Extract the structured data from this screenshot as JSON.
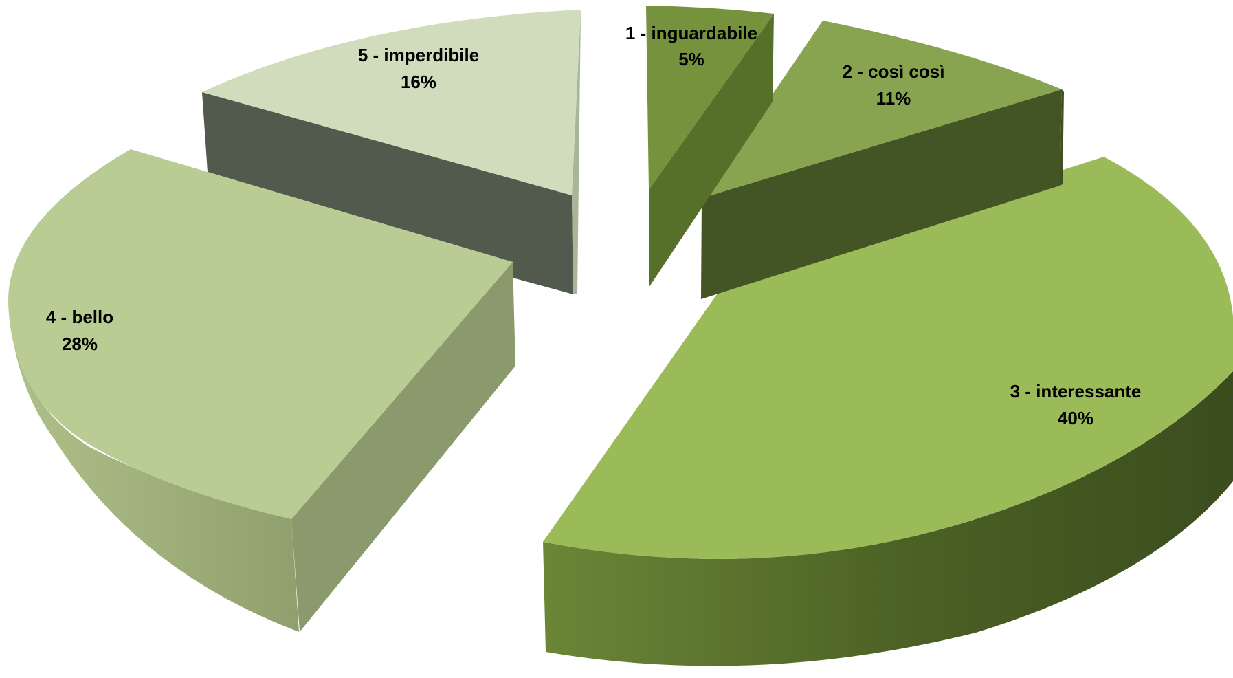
{
  "chart_data": {
    "type": "pie",
    "style": "3d-exploded",
    "slices": [
      {
        "label": "1 - inguardabile",
        "value": 5,
        "value_label": "5%",
        "color": "#77923C",
        "side": "#56702A"
      },
      {
        "label": "2 - così così",
        "value": 11,
        "value_label": "11%",
        "color": "#88A451",
        "side": "#435425"
      },
      {
        "label": "3 - interessante",
        "value": 40,
        "value_label": "40%",
        "color": "#9BBB59",
        "side": "#4F6628"
      },
      {
        "label": "4 - bello",
        "value": 28,
        "value_label": "28%",
        "color": "#B9CC94",
        "side": "#8A9A6D"
      },
      {
        "label": "5 - imperdibile",
        "value": 16,
        "value_label": "16%",
        "color": "#D0DCBB",
        "side": "#525A4D"
      }
    ]
  }
}
